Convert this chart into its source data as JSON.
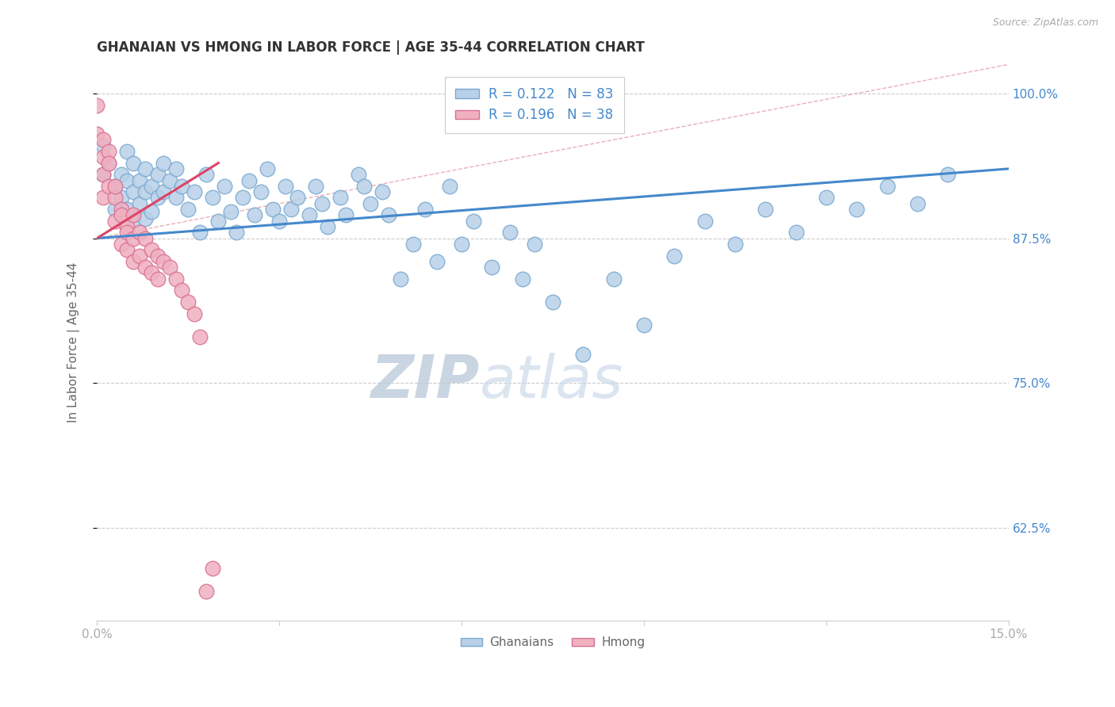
{
  "title": "GHANAIAN VS HMONG IN LABOR FORCE | AGE 35-44 CORRELATION CHART",
  "source_text": "Source: ZipAtlas.com",
  "ylabel": "In Labor Force | Age 35-44",
  "xlim": [
    0.0,
    0.15
  ],
  "ylim": [
    0.545,
    1.025
  ],
  "xticks": [
    0.0,
    0.03,
    0.06,
    0.09,
    0.12,
    0.15
  ],
  "xticklabels": [
    "0.0%",
    "",
    "",
    "",
    "",
    "15.0%"
  ],
  "yticks": [
    0.625,
    0.75,
    0.875,
    1.0
  ],
  "yticklabels": [
    "62.5%",
    "75.0%",
    "87.5%",
    "100.0%"
  ],
  "legend_blue_r": "R = 0.122",
  "legend_blue_n": "N = 83",
  "legend_pink_r": "R = 0.196",
  "legend_pink_n": "N = 38",
  "blue_color": "#b8d0e8",
  "blue_edge": "#7aa8d0",
  "pink_color": "#f0b0c0",
  "pink_edge": "#d87090",
  "blue_line_color": "#4488cc",
  "pink_line_color": "#dd4466",
  "diag_line_color": "#e8b0b8",
  "watermark_color": "#ccd8e8",
  "title_color": "#333333",
  "axis_label_color": "#666666",
  "tick_color": "#aaaaaa",
  "grid_color": "#cccccc",
  "right_tick_color": "#4488cc",
  "blue_scatter_x": [
    0.001,
    0.001,
    0.002,
    0.003,
    0.003,
    0.004,
    0.004,
    0.005,
    0.005,
    0.005,
    0.006,
    0.006,
    0.006,
    0.007,
    0.007,
    0.008,
    0.008,
    0.008,
    0.009,
    0.009,
    0.01,
    0.01,
    0.011,
    0.011,
    0.012,
    0.013,
    0.013,
    0.014,
    0.015,
    0.016,
    0.017,
    0.018,
    0.019,
    0.02,
    0.021,
    0.022,
    0.023,
    0.024,
    0.025,
    0.026,
    0.027,
    0.028,
    0.029,
    0.03,
    0.031,
    0.032,
    0.033,
    0.035,
    0.036,
    0.037,
    0.038,
    0.04,
    0.041,
    0.043,
    0.044,
    0.045,
    0.047,
    0.048,
    0.05,
    0.052,
    0.054,
    0.056,
    0.058,
    0.06,
    0.062,
    0.065,
    0.068,
    0.07,
    0.072,
    0.075,
    0.08,
    0.085,
    0.09,
    0.095,
    0.1,
    0.105,
    0.11,
    0.115,
    0.12,
    0.125,
    0.13,
    0.135,
    0.14
  ],
  "blue_scatter_y": [
    0.955,
    0.93,
    0.94,
    0.92,
    0.9,
    0.93,
    0.91,
    0.95,
    0.925,
    0.9,
    0.94,
    0.915,
    0.89,
    0.925,
    0.905,
    0.935,
    0.915,
    0.892,
    0.92,
    0.898,
    0.93,
    0.91,
    0.94,
    0.915,
    0.925,
    0.935,
    0.91,
    0.92,
    0.9,
    0.915,
    0.88,
    0.93,
    0.91,
    0.89,
    0.92,
    0.898,
    0.88,
    0.91,
    0.925,
    0.895,
    0.915,
    0.935,
    0.9,
    0.89,
    0.92,
    0.9,
    0.91,
    0.895,
    0.92,
    0.905,
    0.885,
    0.91,
    0.895,
    0.93,
    0.92,
    0.905,
    0.915,
    0.895,
    0.84,
    0.87,
    0.9,
    0.855,
    0.92,
    0.87,
    0.89,
    0.85,
    0.88,
    0.84,
    0.87,
    0.82,
    0.775,
    0.84,
    0.8,
    0.86,
    0.89,
    0.87,
    0.9,
    0.88,
    0.91,
    0.9,
    0.92,
    0.905,
    0.93
  ],
  "pink_scatter_x": [
    0.0,
    0.0,
    0.001,
    0.001,
    0.001,
    0.001,
    0.002,
    0.002,
    0.002,
    0.003,
    0.003,
    0.003,
    0.004,
    0.004,
    0.004,
    0.005,
    0.005,
    0.005,
    0.006,
    0.006,
    0.006,
    0.007,
    0.007,
    0.008,
    0.008,
    0.009,
    0.009,
    0.01,
    0.01,
    0.011,
    0.012,
    0.013,
    0.014,
    0.015,
    0.016,
    0.017,
    0.018,
    0.019
  ],
  "pink_scatter_y": [
    0.99,
    0.965,
    0.945,
    0.96,
    0.93,
    0.91,
    0.95,
    0.92,
    0.94,
    0.91,
    0.89,
    0.92,
    0.9,
    0.87,
    0.895,
    0.885,
    0.865,
    0.88,
    0.895,
    0.875,
    0.855,
    0.88,
    0.86,
    0.875,
    0.85,
    0.865,
    0.845,
    0.86,
    0.84,
    0.855,
    0.85,
    0.84,
    0.83,
    0.82,
    0.81,
    0.79,
    0.57,
    0.59
  ],
  "blue_trend_x": [
    0.0,
    0.15
  ],
  "blue_trend_y": [
    0.875,
    0.935
  ],
  "pink_trend_x": [
    0.0,
    0.02
  ],
  "pink_trend_y": [
    0.875,
    0.94
  ],
  "diag_line_x": [
    0.0,
    0.15
  ],
  "diag_line_y": [
    0.875,
    1.025
  ]
}
